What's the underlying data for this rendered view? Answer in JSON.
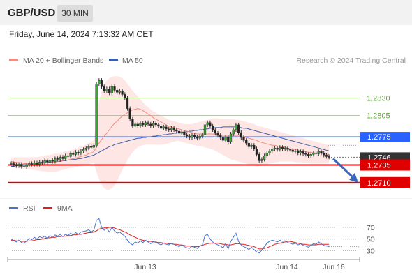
{
  "header": {
    "symbol": "GBP/USD",
    "timeframe": "30 MIN"
  },
  "datetime": "Friday, June 14, 2024 7:13:32 AM CET",
  "legend": {
    "ma20_bb": "MA 20 + Bollinger Bands",
    "ma50": "MA 50",
    "credit": "Research © 2024 Trading Central",
    "colors": {
      "ma20": "#f28b82",
      "ma50": "#3a5ea8",
      "band": "#fde3e1"
    }
  },
  "rsi_legend": {
    "rsi": "RSI",
    "ma9": "9MA",
    "colors": {
      "rsi": "#4a74c9",
      "ma9": "#e02020"
    }
  },
  "chart_data": [
    {
      "type": "candlestick",
      "ylim": [
        1.2692,
        1.287
      ],
      "x_ticks": [
        "Jun 13",
        "Jun 14",
        "Jun 16"
      ],
      "levels": [
        {
          "label": "1.2830",
          "value": 1.283,
          "style": "resistance",
          "color": "#8fc46b"
        },
        {
          "label": "1.2805",
          "value": 1.2805,
          "style": "resistance",
          "color": "#8fc46b"
        },
        {
          "label": "1.2775",
          "value": 1.2775,
          "style": "pivot",
          "color": "#2962ff"
        },
        {
          "label": "1.2746",
          "value": 1.2746,
          "style": "last",
          "color": "#333333"
        },
        {
          "label": "1.2735",
          "value": 1.2735,
          "style": "support",
          "color": "#e00000"
        },
        {
          "label": "1.2710",
          "value": 1.271,
          "style": "support",
          "color": "#e00000"
        }
      ],
      "close": [
        1.2737,
        1.2735,
        1.2734,
        1.2736,
        1.2733,
        1.2732,
        1.2735,
        1.2737,
        1.2736,
        1.2738,
        1.2736,
        1.2739,
        1.2738,
        1.2741,
        1.2739,
        1.2742,
        1.274,
        1.2744,
        1.2743,
        1.2746,
        1.2744,
        1.2748,
        1.2747,
        1.2751,
        1.275,
        1.2753,
        1.2752,
        1.2755,
        1.2757,
        1.2759,
        1.2761,
        1.276,
        1.2763,
        1.285,
        1.2855,
        1.2846,
        1.284,
        1.2843,
        1.2837,
        1.2846,
        1.2841,
        1.2838,
        1.284,
        1.2835,
        1.283,
        1.2815,
        1.28,
        1.279,
        1.2793,
        1.2791,
        1.2794,
        1.2792,
        1.2795,
        1.2793,
        1.2791,
        1.2794,
        1.2792,
        1.279,
        1.2787,
        1.2789,
        1.2786,
        1.2785,
        1.2787,
        1.2785,
        1.2783,
        1.278,
        1.2782,
        1.2778,
        1.2776,
        1.2774,
        1.2777,
        1.2775,
        1.2773,
        1.2776,
        1.2778,
        1.2792,
        1.2795,
        1.279,
        1.2785,
        1.278,
        1.2777,
        1.2774,
        1.277,
        1.2775,
        1.2768,
        1.2779,
        1.2785,
        1.2792,
        1.2781,
        1.2774,
        1.277,
        1.2766,
        1.2761,
        1.2763,
        1.2758,
        1.275,
        1.2741,
        1.2743,
        1.2748,
        1.2752,
        1.2755,
        1.2758,
        1.2759,
        1.2757,
        1.276,
        1.2758,
        1.2759,
        1.2757,
        1.2756,
        1.2754,
        1.2755,
        1.2752,
        1.2754,
        1.2751,
        1.275,
        1.2748,
        1.275,
        1.2752,
        1.2751,
        1.2754,
        1.2752,
        1.2749,
        1.2747,
        1.2746
      ],
      "ma20": [
        1.274,
        1.2739,
        1.2739,
        1.2738,
        1.2738,
        1.2737,
        1.2737,
        1.2737,
        1.2736,
        1.2736,
        1.2737,
        1.2737,
        1.2737,
        1.2738,
        1.2738,
        1.2738,
        1.2739,
        1.2739,
        1.274,
        1.2741,
        1.2741,
        1.2742,
        1.2742,
        1.2743,
        1.2744,
        1.2745,
        1.2746,
        1.2747,
        1.2748,
        1.2749,
        1.2751,
        1.2752,
        1.2754,
        1.276,
        1.2766,
        1.2771,
        1.2776,
        1.278,
        1.2785,
        1.279,
        1.2794,
        1.2797,
        1.2801,
        1.2804,
        1.2807,
        1.2809,
        1.2811,
        1.2813,
        1.2814,
        1.2815,
        1.2814,
        1.2812,
        1.281,
        1.2807,
        1.2805,
        1.2802,
        1.28,
        1.2798,
        1.2796,
        1.2794,
        1.2792,
        1.279,
        1.2789,
        1.2788,
        1.2787,
        1.2786,
        1.2785,
        1.2784,
        1.2783,
        1.2782,
        1.2781,
        1.278,
        1.2779,
        1.2779,
        1.2779,
        1.2779,
        1.2779,
        1.2779,
        1.2779,
        1.2778,
        1.2778,
        1.2778,
        1.2777,
        1.2777,
        1.2777,
        1.2777,
        1.2777,
        1.2777,
        1.2777,
        1.2776,
        1.2775,
        1.2774,
        1.2773,
        1.2772,
        1.2771,
        1.277,
        1.2768,
        1.2767,
        1.2766,
        1.2765,
        1.2764,
        1.2763,
        1.2763,
        1.2762,
        1.2761,
        1.2761,
        1.276,
        1.2759,
        1.2758,
        1.2757,
        1.2757,
        1.2756,
        1.2755,
        1.2754,
        1.2754,
        1.2753,
        1.2753,
        1.2752,
        1.2752,
        1.2752,
        1.2751,
        1.2751,
        1.275,
        1.275
      ],
      "ma50": [
        1.2733,
        1.2733,
        1.2734,
        1.2734,
        1.2735,
        1.2735,
        1.2735,
        1.2736,
        1.2736,
        1.2736,
        1.2737,
        1.2737,
        1.2737,
        1.2738,
        1.2738,
        1.2739,
        1.2739,
        1.2739,
        1.274,
        1.274,
        1.2741,
        1.2741,
        1.2742,
        1.2742,
        1.2743,
        1.2743,
        1.2744,
        1.2744,
        1.2745,
        1.2746,
        1.2747,
        1.2748,
        1.2749,
        1.2751,
        1.2753,
        1.2755,
        1.2757,
        1.2759,
        1.2761,
        1.2762,
        1.2764,
        1.2765,
        1.2766,
        1.2767,
        1.2768,
        1.2769,
        1.277,
        1.2771,
        1.2772,
        1.2773,
        1.2773,
        1.2774,
        1.2774,
        1.2775,
        1.2775,
        1.2776,
        1.2776,
        1.2777,
        1.2777,
        1.2778,
        1.2778,
        1.2779,
        1.2779,
        1.278,
        1.278,
        1.2781,
        1.2781,
        1.2782,
        1.2782,
        1.2783,
        1.2783,
        1.2784,
        1.2784,
        1.2785,
        1.2785,
        1.2786,
        1.2786,
        1.2787,
        1.2787,
        1.2788,
        1.2788,
        1.2788,
        1.2789,
        1.2789,
        1.2789,
        1.2789,
        1.2789,
        1.2789,
        1.2788,
        1.2788,
        1.2787,
        1.2787,
        1.2786,
        1.2785,
        1.2784,
        1.2783,
        1.2782,
        1.2781,
        1.278,
        1.2779,
        1.2778,
        1.2777,
        1.2776,
        1.2775,
        1.2774,
        1.2773,
        1.2772,
        1.2771,
        1.277,
        1.2769,
        1.2768,
        1.2767,
        1.2766,
        1.2765,
        1.2764,
        1.2763,
        1.2762,
        1.2761,
        1.276,
        1.2759,
        1.2758,
        1.2757,
        1.2756,
        1.2755
      ],
      "bb_upper": [
        1.2746,
        1.2746,
        1.2746,
        1.2746,
        1.2746,
        1.2746,
        1.2746,
        1.2746,
        1.2746,
        1.2746,
        1.2746,
        1.2747,
        1.2747,
        1.2748,
        1.2749,
        1.2749,
        1.275,
        1.2751,
        1.2751,
        1.2752,
        1.2753,
        1.2754,
        1.2755,
        1.2756,
        1.2757,
        1.2758,
        1.276,
        1.2761,
        1.2762,
        1.2764,
        1.2766,
        1.2768,
        1.277,
        1.28,
        1.2825,
        1.284,
        1.285,
        1.2855,
        1.2858,
        1.286,
        1.2861,
        1.2861,
        1.286,
        1.2858,
        1.2855,
        1.285,
        1.2845,
        1.284,
        1.2836,
        1.2832,
        1.2828,
        1.2824,
        1.282,
        1.2817,
        1.2814,
        1.2811,
        1.2809,
        1.2807,
        1.2805,
        1.2803,
        1.2801,
        1.2799,
        1.2798,
        1.2797,
        1.2796,
        1.2795,
        1.2794,
        1.2793,
        1.2793,
        1.2793,
        1.2793,
        1.2794,
        1.2795,
        1.2796,
        1.2797,
        1.2798,
        1.2799,
        1.28,
        1.2801,
        1.2801,
        1.2801,
        1.28,
        1.28,
        1.28,
        1.28,
        1.28,
        1.28,
        1.2799,
        1.2799,
        1.2798,
        1.2797,
        1.2796,
        1.2795,
        1.2794,
        1.2793,
        1.2791,
        1.279,
        1.2789,
        1.2788,
        1.2787,
        1.2786,
        1.2785,
        1.2784,
        1.2783,
        1.2782,
        1.2781,
        1.278,
        1.2779,
        1.2778,
        1.2777,
        1.2776,
        1.2775,
        1.2774,
        1.2773,
        1.2772,
        1.2771,
        1.277,
        1.2769,
        1.2768,
        1.2767,
        1.2766,
        1.2765,
        1.2764,
        1.2763
      ],
      "bb_lower": [
        1.2732,
        1.2732,
        1.2731,
        1.2731,
        1.273,
        1.273,
        1.2729,
        1.2729,
        1.2728,
        1.2728,
        1.2727,
        1.2727,
        1.2726,
        1.2726,
        1.2725,
        1.2725,
        1.2725,
        1.2725,
        1.2726,
        1.2727,
        1.2728,
        1.2729,
        1.273,
        1.2731,
        1.2731,
        1.2732,
        1.2733,
        1.2733,
        1.2734,
        1.2735,
        1.2736,
        1.2737,
        1.2738,
        1.2725,
        1.2715,
        1.2707,
        1.2702,
        1.27,
        1.27,
        1.2702,
        1.2706,
        1.2712,
        1.272,
        1.2728,
        1.2735,
        1.2742,
        1.2748,
        1.2753,
        1.2757,
        1.276,
        1.2762,
        1.2763,
        1.2764,
        1.2764,
        1.2764,
        1.2764,
        1.2764,
        1.2764,
        1.2764,
        1.2764,
        1.2765,
        1.2766,
        1.2767,
        1.2768,
        1.2769,
        1.2769,
        1.2768,
        1.2767,
        1.2766,
        1.2765,
        1.2764,
        1.2763,
        1.2762,
        1.2762,
        1.2761,
        1.276,
        1.2759,
        1.2758,
        1.2757,
        1.2755,
        1.2753,
        1.2751,
        1.2749,
        1.2747,
        1.2745,
        1.2743,
        1.2742,
        1.2741,
        1.274,
        1.2739,
        1.2738,
        1.2737,
        1.2736,
        1.2735,
        1.2734,
        1.2733,
        1.2733,
        1.2734,
        1.2735,
        1.2736,
        1.2737,
        1.2738,
        1.2739,
        1.2739,
        1.274,
        1.274,
        1.274,
        1.274,
        1.274,
        1.274,
        1.2739,
        1.2739,
        1.2739,
        1.2738,
        1.2738,
        1.2738,
        1.2737,
        1.2737,
        1.2737,
        1.2737,
        1.2737,
        1.2737,
        1.2737,
        1.2737
      ],
      "projection": [
        1.2746,
        1.271
      ]
    },
    {
      "type": "line",
      "name": "RSI",
      "ylim": [
        15,
        95
      ],
      "y_ticks": [
        70,
        50,
        30
      ],
      "rsi": [
        50,
        47,
        45,
        48,
        44,
        43,
        47,
        51,
        49,
        53,
        50,
        54,
        52,
        55,
        51,
        56,
        53,
        57,
        55,
        58,
        54,
        58,
        56,
        60,
        57,
        61,
        58,
        62,
        63,
        64,
        66,
        62,
        65,
        82,
        85,
        70,
        65,
        68,
        62,
        70,
        64,
        60,
        62,
        58,
        55,
        48,
        43,
        40,
        45,
        43,
        47,
        44,
        48,
        45,
        42,
        46,
        44,
        42,
        40,
        43,
        41,
        40,
        43,
        41,
        39,
        37,
        40,
        37,
        35,
        34,
        38,
        36,
        34,
        38,
        40,
        56,
        58,
        50,
        45,
        42,
        40,
        38,
        35,
        42,
        33,
        46,
        53,
        60,
        46,
        40,
        37,
        35,
        32,
        36,
        32,
        28,
        26,
        31,
        37,
        43,
        46,
        48,
        47,
        45,
        48,
        46,
        47,
        44,
        43,
        41,
        43,
        40,
        42,
        39,
        38,
        36,
        39,
        42,
        41,
        45,
        42,
        39,
        38,
        37
      ],
      "ma9": [
        48,
        48,
        47,
        47,
        46,
        46,
        46,
        47,
        47,
        48,
        49,
        49,
        50,
        51,
        52,
        52,
        53,
        53,
        54,
        54,
        55,
        55,
        56,
        56,
        57,
        57,
        58,
        58,
        59,
        60,
        61,
        61,
        62,
        64,
        67,
        68,
        69,
        69,
        70,
        70,
        69,
        67,
        66,
        64,
        62,
        60,
        57,
        55,
        53,
        51,
        49,
        48,
        47,
        46,
        46,
        45,
        45,
        44,
        44,
        43,
        43,
        42,
        42,
        41,
        41,
        40,
        40,
        39,
        38,
        38,
        37,
        37,
        37,
        38,
        39,
        41,
        42,
        43,
        43,
        43,
        43,
        42,
        41,
        41,
        40,
        40,
        41,
        42,
        42,
        41,
        41,
        40,
        39,
        38,
        37,
        35,
        33,
        33,
        34,
        35,
        37,
        39,
        41,
        42,
        43,
        44,
        45,
        46,
        46,
        45,
        44,
        43,
        42,
        41,
        41,
        40,
        40,
        40,
        40,
        41,
        41,
        41,
        41,
        41
      ]
    }
  ]
}
